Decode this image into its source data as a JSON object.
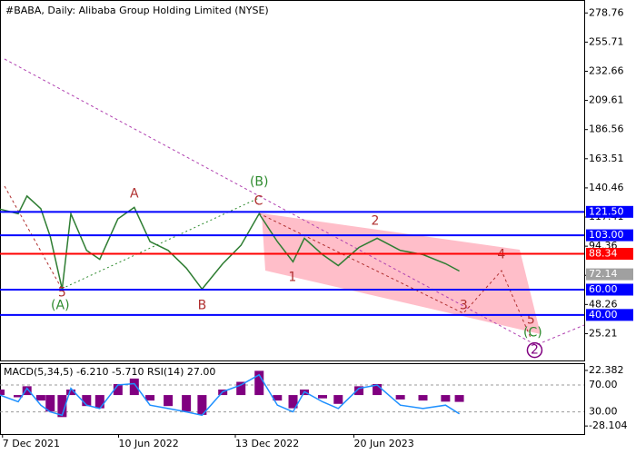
{
  "chart_data": [
    {
      "type": "line",
      "title": "#BABA, Daily:  Alibaba Group Holding Limited (NYSE)",
      "x": [
        "2021-12-03",
        "2022-01-01",
        "2022-01-15",
        "2022-02-06",
        "2022-02-21",
        "2022-03-12",
        "2022-03-26",
        "2022-04-20",
        "2022-05-11",
        "2022-06-09",
        "2022-07-05",
        "2022-07-30",
        "2022-08-28",
        "2022-09-26",
        "2022-10-21",
        "2022-11-23",
        "2022-12-22",
        "2023-01-20",
        "2023-02-18",
        "2023-03-15",
        "2023-04-02",
        "2023-05-01",
        "2023-05-26",
        "2023-06-28",
        "2023-07-27",
        "2023-09-02",
        "2023-10-08",
        "2023-11-13",
        "2023-12-05"
      ],
      "series": [
        {
          "color": "#2e7d32",
          "values": [
            123.6,
            120,
            134,
            124,
            102,
            60.4,
            120,
            91,
            84,
            116,
            125,
            98,
            91,
            77,
            60.4,
            80.5,
            95,
            120,
            98,
            82,
            100.6,
            87.7,
            79,
            93.4,
            100.6,
            91,
            87.7,
            80.5,
            74.7
          ]
        }
      ],
      "xlim": [
        "2021-12-03",
        "2024-06-21"
      ],
      "xticks": [
        {
          "value": "2021-12-07",
          "label": "7 Dec 2021"
        },
        {
          "value": "2022-06-10",
          "label": "10 Jun 2022"
        },
        {
          "value": "2022-12-13",
          "label": "13 Dec 2022"
        },
        {
          "value": "2023-06-20",
          "label": "20 Jun 2023"
        }
      ],
      "ylim": [
        4,
        289
      ],
      "yticks": [
        278.76,
        255.71,
        232.66,
        209.61,
        186.56,
        163.51,
        140.46,
        117.41,
        94.36,
        71.31,
        48.26,
        25.21
      ],
      "levels": [
        {
          "value": 121.5,
          "label": "121.50",
          "color": "#0000ff"
        },
        {
          "value": 103,
          "label": "103.00",
          "color": "#0000ff"
        },
        {
          "value": 88.34,
          "label": "88.34",
          "color": "#ff0000"
        },
        {
          "value": 60,
          "label": "60.00",
          "color": "#0000ff"
        },
        {
          "value": 40,
          "label": "40.00",
          "color": "#0000ff"
        }
      ],
      "current_price": {
        "value": 72.14,
        "label": "72.14",
        "color": "#a0a0a0"
      },
      "annotations": [
        {
          "text": "5",
          "x": "2022-03-12",
          "y": 57.5,
          "color": "#b03030"
        },
        {
          "text": "(A)",
          "x": "2022-03-09",
          "y": 47.4,
          "color": "#2e8b2e"
        },
        {
          "text": "A",
          "x": "2022-07-05",
          "y": 135.8,
          "color": "#b03030"
        },
        {
          "text": "B",
          "x": "2022-10-21",
          "y": 47.4,
          "color": "#b03030"
        },
        {
          "text": "(B)",
          "x": "2023-01-20",
          "y": 145.1,
          "color": "#2e8b2e"
        },
        {
          "text": "C",
          "x": "2023-01-19",
          "y": 130,
          "color": "#b03030"
        },
        {
          "text": "1",
          "x": "2023-03-14",
          "y": 69.7,
          "color": "#b03030"
        },
        {
          "text": "2",
          "x": "2023-07-24",
          "y": 114.2,
          "color": "#b03030"
        },
        {
          "text": "3",
          "x": "2023-12-12",
          "y": 47.4,
          "color": "#b03030"
        },
        {
          "text": "4",
          "x": "2024-02-10",
          "y": 87.7,
          "color": "#b03030"
        },
        {
          "text": "5",
          "x": "2024-03-28",
          "y": 36,
          "color": "#b03030"
        },
        {
          "text": "(C)",
          "x": "2024-03-31",
          "y": 26,
          "color": "#2e8b2e"
        },
        {
          "text": "2",
          "x": "2024-04-03",
          "y": 12.2,
          "color": "#800080",
          "circled": true
        }
      ]
    },
    {
      "type": "bar",
      "title": "MACD(5,34,5) -6.210 -5.710 RSI(14) 27.00",
      "x": [
        "2021-12-03",
        "2022-01-01",
        "2022-01-15",
        "2022-02-06",
        "2022-02-21",
        "2022-03-12",
        "2022-03-26",
        "2022-04-20",
        "2022-05-11",
        "2022-06-09",
        "2022-07-05",
        "2022-07-30",
        "2022-08-28",
        "2022-09-26",
        "2022-10-21",
        "2022-11-23",
        "2022-12-22",
        "2023-01-20",
        "2023-02-18",
        "2023-03-15",
        "2023-04-02",
        "2023-05-01",
        "2023-05-26",
        "2023-06-28",
        "2023-07-27",
        "2023-09-02",
        "2023-10-08",
        "2023-11-13",
        "2023-12-05"
      ],
      "series": [
        {
          "color": "#800080",
          "values": [
            5,
            -2,
            8,
            -5,
            -15,
            -20,
            5,
            -10,
            -12,
            10,
            15,
            -5,
            -10,
            -15,
            -18,
            5,
            12,
            22,
            -5,
            -12,
            5,
            -3,
            -8,
            8,
            10,
            -4,
            -5,
            -6,
            -6.21
          ]
        },
        {
          "color": "#1e90ff",
          "axis": "y2",
          "values": [
            55,
            45,
            65,
            40,
            30,
            25,
            65,
            40,
            35,
            70,
            72,
            40,
            35,
            30,
            25,
            60,
            70,
            85,
            40,
            30,
            60,
            45,
            35,
            65,
            70,
            40,
            35,
            40,
            27
          ]
        }
      ],
      "ylim": [
        -35.4,
        28.1
      ],
      "yticks": [
        22.382,
        -28.104
      ],
      "y2lim": [
        -3,
        101
      ],
      "y2ticks": [
        {
          "value": 70,
          "label": "70.00"
        },
        {
          "value": 30,
          "label": "30.00"
        }
      ]
    }
  ]
}
